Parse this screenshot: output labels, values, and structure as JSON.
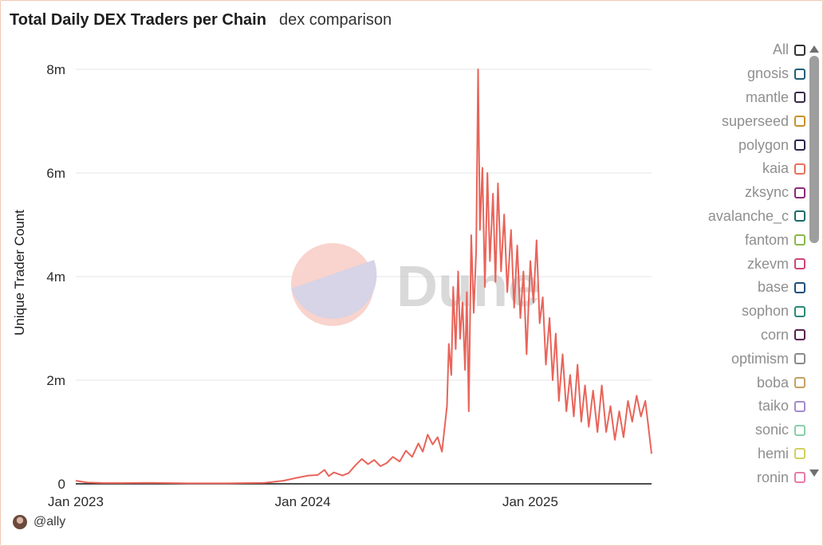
{
  "header": {
    "title": "Total Daily DEX Traders per Chain",
    "subtitle": "dex comparison"
  },
  "author": "@ally",
  "watermark": "Dune",
  "legend": {
    "items": [
      {
        "label": "All",
        "color": "#333333"
      },
      {
        "label": "gnosis",
        "color": "#1f5f78"
      },
      {
        "label": "mantle",
        "color": "#3b2a4a"
      },
      {
        "label": "superseed",
        "color": "#c9902b"
      },
      {
        "label": "polygon",
        "color": "#2b2550"
      },
      {
        "label": "kaia",
        "color": "#e8705f"
      },
      {
        "label": "zksync",
        "color": "#8a2a7a"
      },
      {
        "label": "avalanche_c",
        "color": "#1d6b6b"
      },
      {
        "label": "fantom",
        "color": "#8ab84a"
      },
      {
        "label": "zkevm",
        "color": "#d0457a"
      },
      {
        "label": "base",
        "color": "#1f4f7a"
      },
      {
        "label": "sophon",
        "color": "#2a8a7a"
      },
      {
        "label": "corn",
        "color": "#5a2050"
      },
      {
        "label": "optimism",
        "color": "#8a8a8a"
      },
      {
        "label": "boba",
        "color": "#c4a060"
      },
      {
        "label": "taiko",
        "color": "#a48ad0"
      },
      {
        "label": "sonic",
        "color": "#8ad0a8"
      },
      {
        "label": "hemi",
        "color": "#d0d060"
      },
      {
        "label": "ronin",
        "color": "#e87aa8"
      }
    ]
  },
  "chart_data": {
    "type": "line",
    "title": "Total Daily DEX Traders per Chain",
    "xlabel": "",
    "ylabel": "Unique Trader Count",
    "x_ticks": [
      "Jan 2023",
      "Jan 2024",
      "Jan 2025"
    ],
    "y_ticks": [
      "0",
      "2m",
      "4m",
      "6m",
      "8m"
    ],
    "ylim": [
      0,
      8000000
    ],
    "x_range": [
      "2023-01-01",
      "2025-07-15"
    ],
    "grid": true,
    "series": [
      {
        "name": "kaia",
        "color": "#e8645a",
        "points": [
          [
            "2023-01-01",
            60000
          ],
          [
            "2023-01-20",
            25000
          ],
          [
            "2023-02-15",
            15000
          ],
          [
            "2023-03-15",
            15000
          ],
          [
            "2023-05-01",
            20000
          ],
          [
            "2023-07-01",
            10000
          ],
          [
            "2023-09-01",
            10000
          ],
          [
            "2023-11-01",
            20000
          ],
          [
            "2023-12-01",
            60000
          ],
          [
            "2023-12-20",
            110000
          ],
          [
            "2024-01-10",
            160000
          ],
          [
            "2024-01-25",
            170000
          ],
          [
            "2024-02-05",
            270000
          ],
          [
            "2024-02-12",
            150000
          ],
          [
            "2024-02-20",
            220000
          ],
          [
            "2024-03-05",
            160000
          ],
          [
            "2024-03-15",
            210000
          ],
          [
            "2024-03-25",
            350000
          ],
          [
            "2024-04-05",
            480000
          ],
          [
            "2024-04-15",
            380000
          ],
          [
            "2024-04-25",
            460000
          ],
          [
            "2024-05-05",
            340000
          ],
          [
            "2024-05-15",
            400000
          ],
          [
            "2024-05-25",
            520000
          ],
          [
            "2024-06-05",
            430000
          ],
          [
            "2024-06-15",
            640000
          ],
          [
            "2024-06-25",
            520000
          ],
          [
            "2024-07-05",
            780000
          ],
          [
            "2024-07-12",
            620000
          ],
          [
            "2024-07-20",
            950000
          ],
          [
            "2024-07-28",
            760000
          ],
          [
            "2024-08-05",
            900000
          ],
          [
            "2024-08-12",
            620000
          ],
          [
            "2024-08-20",
            1500000
          ],
          [
            "2024-08-23",
            2700000
          ],
          [
            "2024-08-27",
            2100000
          ],
          [
            "2024-08-30",
            3800000
          ],
          [
            "2024-09-03",
            2600000
          ],
          [
            "2024-09-07",
            4100000
          ],
          [
            "2024-09-10",
            2800000
          ],
          [
            "2024-09-14",
            3500000
          ],
          [
            "2024-09-18",
            2200000
          ],
          [
            "2024-09-21",
            3700000
          ],
          [
            "2024-09-24",
            1400000
          ],
          [
            "2024-09-28",
            4800000
          ],
          [
            "2024-10-02",
            3300000
          ],
          [
            "2024-10-06",
            4500000
          ],
          [
            "2024-10-09",
            8000000
          ],
          [
            "2024-10-12",
            4900000
          ],
          [
            "2024-10-16",
            6100000
          ],
          [
            "2024-10-20",
            3800000
          ],
          [
            "2024-10-24",
            6000000
          ],
          [
            "2024-10-28",
            4300000
          ],
          [
            "2024-11-02",
            5600000
          ],
          [
            "2024-11-06",
            3900000
          ],
          [
            "2024-11-10",
            5800000
          ],
          [
            "2024-11-15",
            4100000
          ],
          [
            "2024-11-20",
            5200000
          ],
          [
            "2024-11-25",
            3700000
          ],
          [
            "2024-12-01",
            4900000
          ],
          [
            "2024-12-06",
            3400000
          ],
          [
            "2024-12-11",
            4600000
          ],
          [
            "2024-12-16",
            3200000
          ],
          [
            "2024-12-21",
            4100000
          ],
          [
            "2024-12-26",
            2500000
          ],
          [
            "2025-01-01",
            4300000
          ],
          [
            "2025-01-06",
            3500000
          ],
          [
            "2025-01-11",
            4700000
          ],
          [
            "2025-01-16",
            3100000
          ],
          [
            "2025-01-21",
            3600000
          ],
          [
            "2025-01-26",
            2300000
          ],
          [
            "2025-02-01",
            3200000
          ],
          [
            "2025-02-06",
            2000000
          ],
          [
            "2025-02-11",
            2900000
          ],
          [
            "2025-02-16",
            1600000
          ],
          [
            "2025-02-22",
            2500000
          ],
          [
            "2025-02-28",
            1400000
          ],
          [
            "2025-03-06",
            2100000
          ],
          [
            "2025-03-12",
            1300000
          ],
          [
            "2025-03-18",
            2300000
          ],
          [
            "2025-03-24",
            1200000
          ],
          [
            "2025-03-30",
            1900000
          ],
          [
            "2025-04-05",
            1100000
          ],
          [
            "2025-04-12",
            1800000
          ],
          [
            "2025-04-19",
            1000000
          ],
          [
            "2025-04-26",
            1900000
          ],
          [
            "2025-05-03",
            1000000
          ],
          [
            "2025-05-10",
            1500000
          ],
          [
            "2025-05-17",
            850000
          ],
          [
            "2025-05-24",
            1400000
          ],
          [
            "2025-05-31",
            900000
          ],
          [
            "2025-06-07",
            1600000
          ],
          [
            "2025-06-14",
            1200000
          ],
          [
            "2025-06-21",
            1700000
          ],
          [
            "2025-06-28",
            1300000
          ],
          [
            "2025-07-05",
            1600000
          ],
          [
            "2025-07-10",
            1100000
          ],
          [
            "2025-07-15",
            580000
          ]
        ]
      }
    ]
  }
}
